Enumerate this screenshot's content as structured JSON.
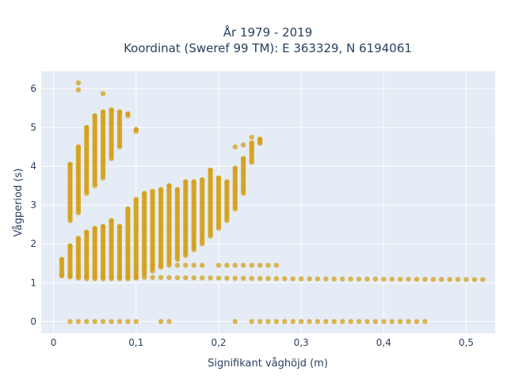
{
  "chart_data": {
    "type": "scatter",
    "title_line1": "År 1979 - 2019",
    "title_line2": "Koordinat (Sweref 99 TM): E 363329, N 6194061",
    "xlabel": "Signifikant våghöjd (m)",
    "ylabel": "Vågperiod (s)",
    "xlim": [
      -0.015,
      0.535
    ],
    "ylim": [
      -0.3,
      6.45
    ],
    "xticks": [
      0,
      0.1,
      0.2,
      0.3,
      0.4,
      0.5
    ],
    "xtick_labels": [
      "0",
      "0,1",
      "0,2",
      "0,3",
      "0,4",
      "0,5"
    ],
    "yticks": [
      0,
      1,
      2,
      3,
      4,
      5,
      6
    ],
    "ytick_labels": [
      "0",
      "1",
      "2",
      "3",
      "4",
      "5",
      "6"
    ],
    "grid": true,
    "colors": {
      "marker": "#d4a017",
      "plot_bg": "#e5ecf6",
      "grid": "#ffffff",
      "text": "#2a3f5f"
    },
    "point_groups": [
      {
        "name": "zero_period",
        "y": 0.0,
        "x": [
          0.02,
          0.03,
          0.04,
          0.05,
          0.06,
          0.07,
          0.08,
          0.09,
          0.1,
          0.13,
          0.14,
          0.22,
          0.24,
          0.25,
          0.26,
          0.27,
          0.28,
          0.29,
          0.3,
          0.31,
          0.32,
          0.33,
          0.34,
          0.35,
          0.36,
          0.37,
          0.38,
          0.39,
          0.4,
          0.41,
          0.42,
          0.43,
          0.44,
          0.45
        ]
      },
      {
        "name": "low_band",
        "x_start": 0.01,
        "x_end": 0.52,
        "x_step": 0.01,
        "y_at_x": [
          [
            0.01,
            1.18
          ],
          [
            0.1,
            1.14
          ],
          [
            0.2,
            1.12
          ],
          [
            0.3,
            1.1
          ],
          [
            0.52,
            1.08
          ]
        ]
      },
      {
        "name": "mid_band_columns",
        "columns": [
          {
            "x": 0.01,
            "ymin": 1.18,
            "ymax": 1.6
          },
          {
            "x": 0.02,
            "ymin": 1.15,
            "ymax": 1.95
          },
          {
            "x": 0.03,
            "ymin": 1.12,
            "ymax": 2.15
          },
          {
            "x": 0.04,
            "ymin": 1.1,
            "ymax": 2.3
          },
          {
            "x": 0.05,
            "ymin": 1.1,
            "ymax": 2.4
          },
          {
            "x": 0.06,
            "ymin": 1.1,
            "ymax": 2.45
          },
          {
            "x": 0.07,
            "ymin": 1.1,
            "ymax": 2.6
          },
          {
            "x": 0.08,
            "ymin": 1.1,
            "ymax": 2.45
          },
          {
            "x": 0.09,
            "ymin": 1.1,
            "ymax": 2.9
          },
          {
            "x": 0.1,
            "ymin": 1.12,
            "ymax": 3.15
          },
          {
            "x": 0.11,
            "ymin": 1.2,
            "ymax": 3.3
          },
          {
            "x": 0.12,
            "ymin": 1.3,
            "ymax": 3.35
          },
          {
            "x": 0.13,
            "ymin": 1.4,
            "ymax": 3.4
          },
          {
            "x": 0.14,
            "ymin": 1.5,
            "ymax": 3.5
          },
          {
            "x": 0.15,
            "ymin": 1.6,
            "ymax": 3.4
          },
          {
            "x": 0.16,
            "ymin": 1.7,
            "ymax": 3.6
          },
          {
            "x": 0.17,
            "ymin": 1.85,
            "ymax": 3.6
          },
          {
            "x": 0.18,
            "ymin": 2.0,
            "ymax": 3.65
          },
          {
            "x": 0.19,
            "ymin": 2.2,
            "ymax": 3.9
          },
          {
            "x": 0.2,
            "ymin": 2.4,
            "ymax": 3.7
          },
          {
            "x": 0.21,
            "ymin": 2.6,
            "ymax": 3.6
          },
          {
            "x": 0.22,
            "ymin": 2.9,
            "ymax": 3.95
          },
          {
            "x": 0.23,
            "ymin": 3.3,
            "ymax": 4.2
          },
          {
            "x": 0.24,
            "ymin": 4.1,
            "ymax": 4.6
          },
          {
            "x": 0.25,
            "ymin": 4.6,
            "ymax": 4.7
          }
        ]
      },
      {
        "name": "upper_cluster_columns",
        "columns": [
          {
            "x": 0.02,
            "ymin": 2.6,
            "ymax": 4.05
          },
          {
            "x": 0.03,
            "ymin": 2.8,
            "ymax": 4.5
          },
          {
            "x": 0.04,
            "ymin": 3.3,
            "ymax": 5.0
          },
          {
            "x": 0.05,
            "ymin": 3.5,
            "ymax": 5.3
          },
          {
            "x": 0.06,
            "ymin": 3.7,
            "ymax": 5.4
          },
          {
            "x": 0.07,
            "ymin": 4.2,
            "ymax": 5.45
          },
          {
            "x": 0.08,
            "ymin": 4.5,
            "ymax": 5.4
          },
          {
            "x": 0.09,
            "ymin": 5.3,
            "ymax": 5.35
          },
          {
            "x": 0.1,
            "ymin": 4.9,
            "ymax": 4.95
          }
        ]
      },
      {
        "name": "outliers",
        "points": [
          [
            0.03,
            6.15
          ],
          [
            0.03,
            5.97
          ],
          [
            0.06,
            5.87
          ],
          [
            0.01,
            1.6
          ],
          [
            0.22,
            4.5
          ],
          [
            0.23,
            4.55
          ],
          [
            0.24,
            4.75
          ],
          [
            0.25,
            4.6
          ]
        ]
      },
      {
        "name": "band_1_45",
        "y": 1.45,
        "x": [
          0.11,
          0.12,
          0.13,
          0.14,
          0.15,
          0.16,
          0.17,
          0.18,
          0.2,
          0.21,
          0.22,
          0.23,
          0.24,
          0.25,
          0.26,
          0.27
        ]
      }
    ]
  }
}
